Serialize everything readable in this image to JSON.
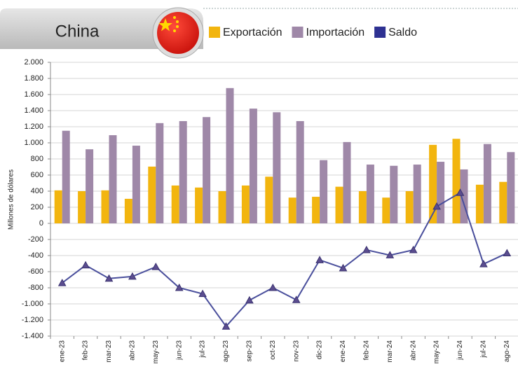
{
  "chart_data": {
    "type": "bar-line",
    "title": "China",
    "y_label": "Millones de dólares",
    "categories": [
      "ene-23",
      "feb-23",
      "mar-23",
      "abr-23",
      "may-23",
      "jun-23",
      "jul-23",
      "ago-23",
      "sep-23",
      "oct-23",
      "nov-23",
      "dic-23",
      "ene-24",
      "feb-24",
      "mar-24",
      "abr-24",
      "may-24",
      "jun-24",
      "jul-24",
      "ago-24"
    ],
    "series": [
      {
        "name": "Exportación",
        "type": "bar",
        "color": "#f2b50f",
        "values": [
          410,
          400,
          410,
          305,
          705,
          470,
          445,
          400,
          470,
          580,
          320,
          330,
          455,
          400,
          320,
          400,
          975,
          1050,
          480,
          515
        ]
      },
      {
        "name": "Importación",
        "type": "bar",
        "color": "#9f88a8",
        "values": [
          1150,
          920,
          1095,
          965,
          1245,
          1270,
          1320,
          1680,
          1425,
          1380,
          1270,
          785,
          1010,
          730,
          715,
          730,
          765,
          670,
          985,
          885
        ]
      },
      {
        "name": "Saldo",
        "type": "line",
        "color": "#2e3192",
        "values": [
          -740,
          -520,
          -685,
          -660,
          -540,
          -800,
          -875,
          -1280,
          -955,
          -800,
          -950,
          -455,
          -555,
          -330,
          -395,
          -330,
          210,
          380,
          -505,
          -370
        ]
      }
    ],
    "ylim": [
      -1400,
      2000
    ],
    "yticks": [
      {
        "value": -1400,
        "label": "-1.400"
      },
      {
        "value": -1200,
        "label": "-1.200"
      },
      {
        "value": -1000,
        "label": "-1.000"
      },
      -800,
      -600,
      -400,
      -200,
      0,
      200,
      400,
      600,
      800,
      {
        "value": 1000,
        "label": "1.000"
      },
      {
        "value": 1200,
        "label": "1.200"
      },
      {
        "value": 1400,
        "label": "1.400"
      },
      {
        "value": 1600,
        "label": "1.600"
      },
      {
        "value": 1800,
        "label": "1.800"
      },
      {
        "value": 2000,
        "label": "2.000"
      }
    ],
    "grid": true
  }
}
